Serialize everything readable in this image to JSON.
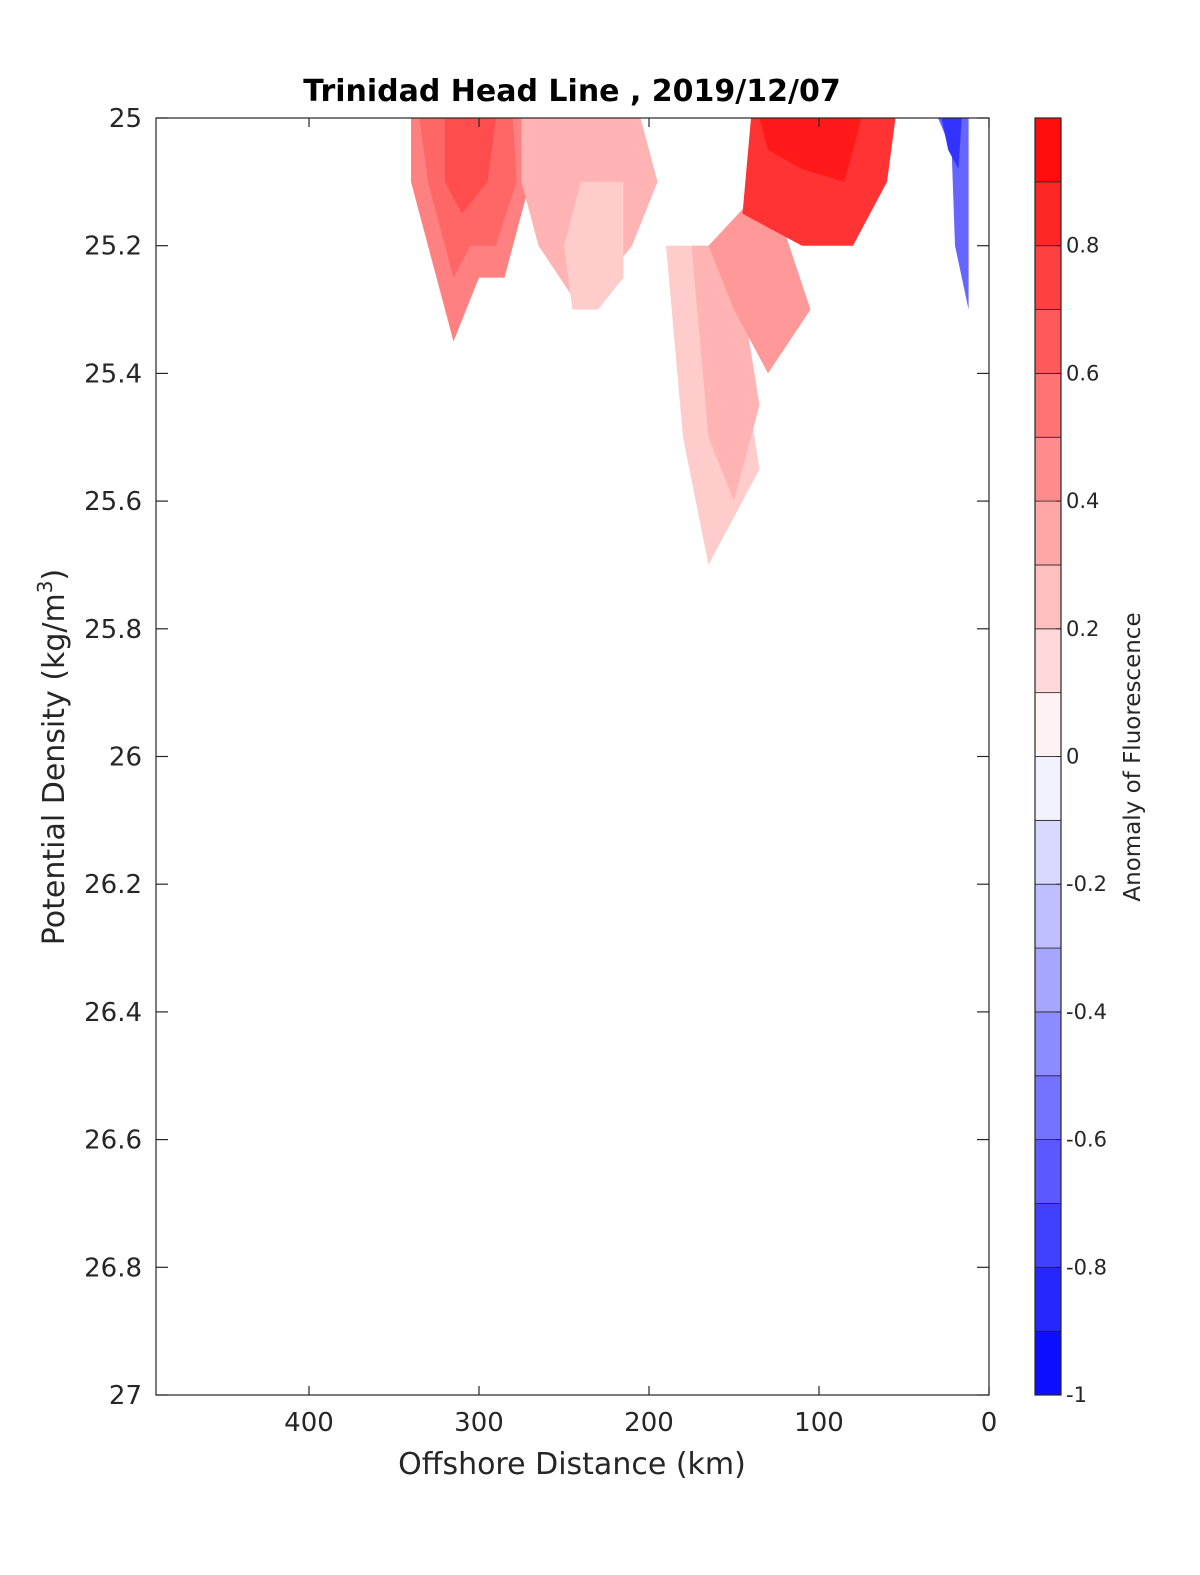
{
  "chart_data": {
    "type": "contour",
    "title": "Trinidad Head Line , 2019/12/07",
    "xlabel": "Offshore Distance (km)",
    "ylabel_main": "Potential Density (kg/m",
    "ylabel_sup": "3",
    "ylabel_end": ")",
    "xlim": [
      490,
      0
    ],
    "x_reversed": true,
    "ylim": [
      25,
      27
    ],
    "y_reversed": true,
    "xticks": [
      400,
      300,
      200,
      100,
      0
    ],
    "xtick_labels": [
      "400",
      "300",
      "200",
      "100",
      "0"
    ],
    "yticks": [
      25,
      25.2,
      25.4,
      25.6,
      25.8,
      26,
      26.2,
      26.4,
      26.6,
      26.8,
      27
    ],
    "ytick_labels": [
      "25",
      "25.2",
      "25.4",
      "25.6",
      "25.8",
      "26",
      "26.2",
      "26.4",
      "26.6",
      "26.8",
      "27"
    ],
    "colorbar": {
      "label": "Anomaly of Fluorescence",
      "limits": [
        -1,
        1
      ],
      "levels": [
        -1,
        -0.9,
        -0.8,
        -0.7,
        -0.6,
        -0.5,
        -0.4,
        -0.3,
        -0.2,
        -0.1,
        0,
        0.1,
        0.2,
        0.3,
        0.4,
        0.5,
        0.6,
        0.7,
        0.8,
        0.9,
        1
      ],
      "ticks": [
        -1,
        -0.8,
        -0.6,
        -0.4,
        -0.2,
        0,
        0.2,
        0.4,
        0.6,
        0.8
      ],
      "tick_labels": [
        "-1",
        "-0.8",
        "-0.6",
        "-0.4",
        "-0.2",
        "0",
        "0.2",
        "0.4",
        "0.6",
        "0.8"
      ]
    },
    "regions": [
      {
        "level": 0.5,
        "points": [
          [
            340,
            25.0
          ],
          [
            275,
            25.0
          ],
          [
            270,
            25.1
          ],
          [
            285,
            25.25
          ],
          [
            300,
            25.25
          ],
          [
            315,
            25.35
          ],
          [
            340,
            25.1
          ]
        ]
      },
      {
        "level": 0.6,
        "points": [
          [
            335,
            25.0
          ],
          [
            280,
            25.0
          ],
          [
            278,
            25.1
          ],
          [
            290,
            25.2
          ],
          [
            305,
            25.2
          ],
          [
            315,
            25.25
          ],
          [
            330,
            25.1
          ]
        ]
      },
      {
        "level": 0.7,
        "points": [
          [
            320,
            25.0
          ],
          [
            290,
            25.0
          ],
          [
            295,
            25.1
          ],
          [
            310,
            25.15
          ],
          [
            320,
            25.1
          ]
        ]
      },
      {
        "level": 0.3,
        "points": [
          [
            275,
            25.0
          ],
          [
            205,
            25.0
          ],
          [
            195,
            25.1
          ],
          [
            210,
            25.2
          ],
          [
            240,
            25.3
          ],
          [
            265,
            25.2
          ],
          [
            275,
            25.1
          ]
        ]
      },
      {
        "level": 0.2,
        "points": [
          [
            240,
            25.1
          ],
          [
            215,
            25.1
          ],
          [
            215,
            25.25
          ],
          [
            230,
            25.3
          ],
          [
            245,
            25.3
          ],
          [
            250,
            25.2
          ]
        ]
      },
      {
        "level": 0.2,
        "points": [
          [
            190,
            25.2
          ],
          [
            155,
            25.2
          ],
          [
            135,
            25.55
          ],
          [
            165,
            25.7
          ],
          [
            180,
            25.5
          ]
        ]
      },
      {
        "level": 0.3,
        "points": [
          [
            175,
            25.2
          ],
          [
            150,
            25.2
          ],
          [
            135,
            25.45
          ],
          [
            150,
            25.6
          ],
          [
            165,
            25.5
          ]
        ]
      },
      {
        "level": 0.4,
        "points": [
          [
            165,
            25.2
          ],
          [
            130,
            25.1
          ],
          [
            105,
            25.3
          ],
          [
            130,
            25.4
          ],
          [
            150,
            25.3
          ]
        ]
      },
      {
        "level": 0.8,
        "points": [
          [
            140,
            25.0
          ],
          [
            55,
            25.0
          ],
          [
            60,
            25.1
          ],
          [
            80,
            25.2
          ],
          [
            110,
            25.2
          ],
          [
            145,
            25.15
          ]
        ]
      },
      {
        "level": 0.9,
        "points": [
          [
            135,
            25.0
          ],
          [
            75,
            25.0
          ],
          [
            85,
            25.1
          ],
          [
            110,
            25.08
          ],
          [
            130,
            25.05
          ]
        ]
      },
      {
        "level": -0.6,
        "points": [
          [
            30,
            25.0
          ],
          [
            12,
            25.0
          ],
          [
            12,
            25.3
          ],
          [
            20,
            25.2
          ],
          [
            22,
            25.05
          ]
        ]
      },
      {
        "level": -0.8,
        "points": [
          [
            28,
            25.0
          ],
          [
            16,
            25.0
          ],
          [
            18,
            25.08
          ],
          [
            24,
            25.05
          ]
        ]
      }
    ]
  }
}
